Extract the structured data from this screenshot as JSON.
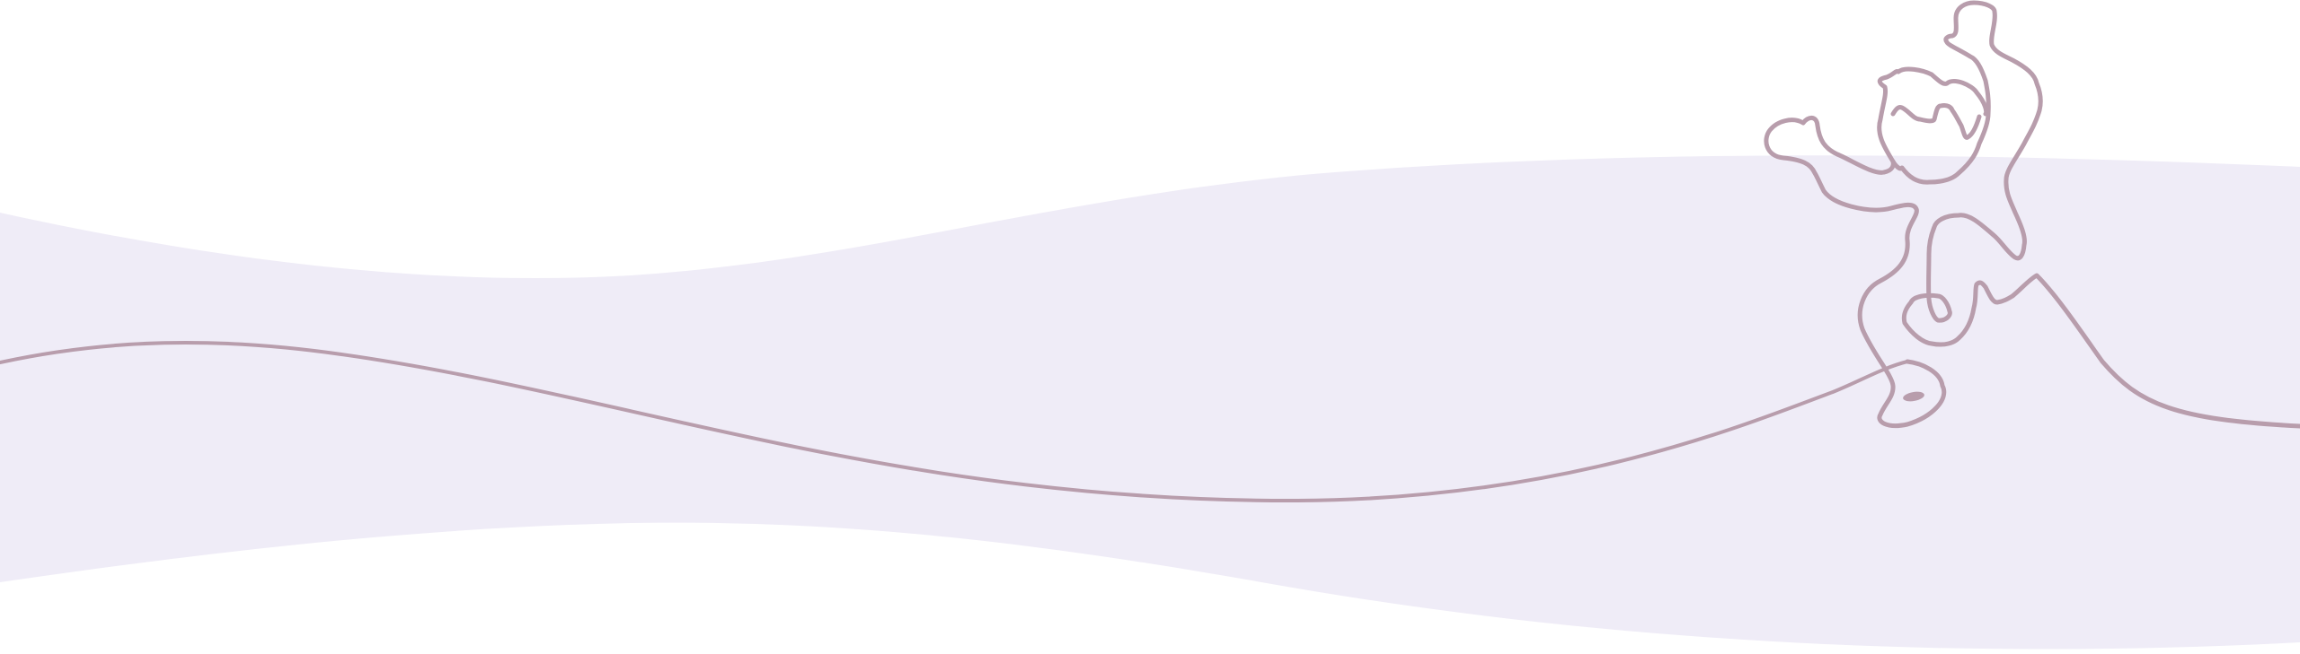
{
  "colors": {
    "background": "#ffffff",
    "band": "#efecf7",
    "line": "#b89dac"
  },
  "illustration": {
    "subject": "dancing-figure-line-art"
  }
}
